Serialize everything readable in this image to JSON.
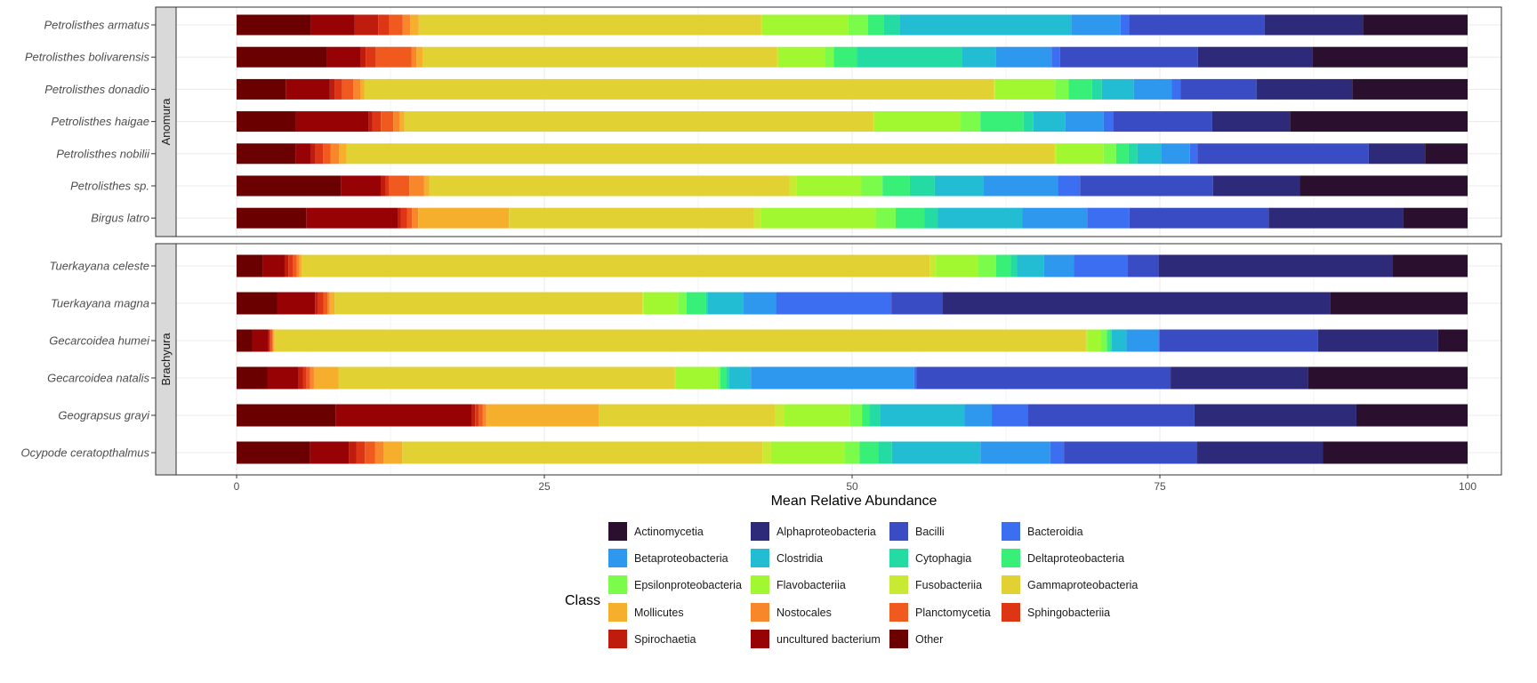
{
  "chart_data": {
    "type": "bar",
    "orientation": "horizontal",
    "stacked": true,
    "xlabel": "Mean Relative Abundance",
    "xlim": [
      0,
      100
    ],
    "xticks": [
      0,
      25,
      50,
      75,
      100
    ],
    "grid": true,
    "legend": {
      "title": "Class",
      "position": "bottom"
    },
    "classes": [
      {
        "name": "Actinomycetia",
        "color": "#2a0f2e"
      },
      {
        "name": "Alphaproteobacteria",
        "color": "#2e2a7a"
      },
      {
        "name": "Bacilli",
        "color": "#3a4cc4"
      },
      {
        "name": "Bacteroidia",
        "color": "#3b6ef0"
      },
      {
        "name": "Betaproteobacteria",
        "color": "#2e98ee"
      },
      {
        "name": "Clostridia",
        "color": "#22bdd2"
      },
      {
        "name": "Cytophagia",
        "color": "#25dba4"
      },
      {
        "name": "Deltaproteobacteria",
        "color": "#38ef78"
      },
      {
        "name": "Epsilonproteobacteria",
        "color": "#7cfc4a"
      },
      {
        "name": "Flavobacteriia",
        "color": "#a2f830"
      },
      {
        "name": "Fusobacteriia",
        "color": "#c9ea32"
      },
      {
        "name": "Gammaproteobacteria",
        "color": "#e2d132"
      },
      {
        "name": "Mollicutes",
        "color": "#f6ae2d"
      },
      {
        "name": "Nostocales",
        "color": "#f8862a"
      },
      {
        "name": "Planctomycetia",
        "color": "#f05a1e"
      },
      {
        "name": "Sphingobacteriia",
        "color": "#dd3614"
      },
      {
        "name": "Spirochaetia",
        "color": "#c01c0e"
      },
      {
        "name": "uncultured bacterium",
        "color": "#970205"
      },
      {
        "name": "Other",
        "color": "#6a0000"
      }
    ],
    "stack_order_left_to_right": [
      "Other",
      "uncultured bacterium",
      "Spirochaetia",
      "Sphingobacteriia",
      "Planctomycetia",
      "Nostocales",
      "Mollicutes",
      "Gammaproteobacteria",
      "Fusobacteriia",
      "Flavobacteriia",
      "Epsilonproteobacteria",
      "Deltaproteobacteria",
      "Cytophagia",
      "Clostridia",
      "Betaproteobacteria",
      "Bacteroidia",
      "Bacilli",
      "Alphaproteobacteria",
      "Actinomycetia"
    ],
    "panels": [
      {
        "label": "Anomura",
        "species": [
          {
            "name": "Petrolisthes armatus",
            "values": [
              6,
              3.6,
              1.9,
              0.9,
              1.1,
              0.6,
              0.7,
              27.8,
              0.1,
              7,
              1.6,
              1.3,
              1.3,
              13.9,
              4,
              0.7,
              11,
              8,
              8.5
            ]
          },
          {
            "name": "Petrolisthes bolivarensis",
            "values": [
              7.3,
              2.8,
              0.4,
              0.8,
              2.9,
              0.4,
              0.5,
              28.8,
              0.1,
              3.8,
              0.7,
              1.9,
              8.5,
              2.8,
              4.5,
              0.7,
              11.2,
              9.3,
              12.6
            ]
          },
          {
            "name": "Petrolisthes donadio",
            "values": [
              4,
              3.6,
              0.4,
              0.6,
              0.9,
              0.6,
              0.3,
              51.3,
              0.1,
              4.9,
              1.1,
              1.9,
              0.8,
              2.6,
              3.1,
              0.7,
              6.2,
              7.8,
              9.4
            ]
          },
          {
            "name": "Petrolisthes haigae",
            "values": [
              4.8,
              5.9,
              0.3,
              0.7,
              1,
              0.5,
              0.4,
              38,
              0.1,
              7,
              1.6,
              3.5,
              0.8,
              2.6,
              3.1,
              0.8,
              8,
              6.3,
              14.4
            ]
          },
          {
            "name": "Petrolisthes nobilii",
            "values": [
              4.7,
              1.2,
              0.4,
              0.6,
              0.6,
              0.7,
              0.6,
              56.6,
              0.1,
              3.8,
              1,
              1,
              0.7,
              1.9,
              2.3,
              0.6,
              13.7,
              4.5,
              3.4
            ]
          },
          {
            "name": "Petrolisthes sp.",
            "values": [
              8.4,
              3.2,
              0.4,
              0.3,
              1.6,
              1.2,
              0.4,
              29,
              0.6,
              5.2,
              1.7,
              2.2,
              2,
              3.9,
              6,
              1.8,
              10.7,
              7,
              13.5
            ]
          },
          {
            "name": "Birgus latro",
            "values": [
              5.6,
              7.4,
              0.2,
              0.5,
              0.4,
              0.5,
              7.3,
              19.7,
              0.6,
              9.2,
              1.6,
              2.3,
              1.1,
              6.8,
              5.2,
              3.4,
              11.2,
              10.8,
              5.2
            ]
          }
        ]
      },
      {
        "label": "Brachyura",
        "species": [
          {
            "name": "Tuerkayana celeste",
            "values": [
              2.1,
              1.8,
              0.3,
              0.4,
              0.3,
              0.2,
              0.2,
              51,
              0.5,
              3.4,
              1.5,
              1.2,
              0.5,
              2.2,
              2.4,
              4.4,
              2.5,
              19,
              6.1
            ]
          },
          {
            "name": "Tuerkayana magna",
            "values": [
              3.3,
              3.1,
              0.2,
              0.5,
              0.3,
              0.2,
              0.4,
              25.1,
              0.1,
              2.8,
              0.7,
              1.6,
              0.1,
              2.9,
              2.7,
              9.4,
              4.2,
              31.6,
              11.2
            ]
          },
          {
            "name": "Gecarcoidea humei",
            "values": [
              1.3,
              1.3,
              0.1,
              0.1,
              0.1,
              0.1,
              0.1,
              66.1,
              0.1,
              1.1,
              0.5,
              0.3,
              0.1,
              1.2,
              2.6,
              0.1,
              12.9,
              9.8,
              2.4
            ]
          },
          {
            "name": "Gecarcoidea natalis",
            "values": [
              2.5,
              2.5,
              0.4,
              0.3,
              0.3,
              0.3,
              2,
              27.4,
              0.1,
              3.4,
              0.2,
              0.5,
              0.2,
              1.8,
              13.3,
              0.2,
              20.7,
              11.2,
              13
            ]
          },
          {
            "name": "Geograpsus grayi",
            "values": [
              8,
              11,
              0.3,
              0.3,
              0.3,
              0.3,
              9.1,
              14.3,
              0.7,
              5.3,
              1,
              0.6,
              0.9,
              6.8,
              2.2,
              2.9,
              13.5,
              13.1,
              9
            ]
          },
          {
            "name": "Ocypode ceratopthalmus",
            "values": [
              5.9,
              3.1,
              0.6,
              0.7,
              0.8,
              0.7,
              1.5,
              28.9,
              0.7,
              5.9,
              1.2,
              1.5,
              1.1,
              7.1,
              5.6,
              1.1,
              10.7,
              10.1,
              11.6
            ]
          }
        ]
      }
    ]
  }
}
